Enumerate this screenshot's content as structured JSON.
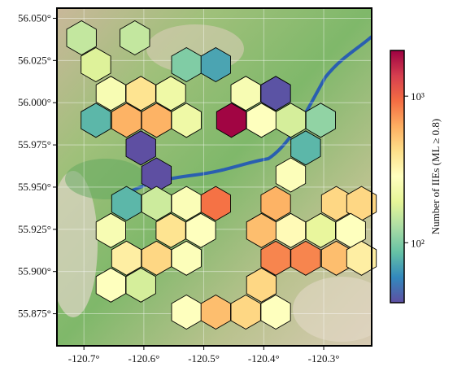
{
  "chart_data": {
    "type": "hexbin",
    "x": [
      -120.704,
      -120.615,
      -120.68,
      -120.529,
      -120.48,
      -120.655,
      -120.605,
      -120.555,
      -120.43,
      -120.38,
      -120.68,
      -120.629,
      -120.579,
      -120.529,
      -120.454,
      -120.404,
      -120.355,
      -120.305,
      -120.605,
      -120.33,
      -120.579,
      -120.355,
      -120.629,
      -120.579,
      -120.529,
      -120.48,
      -120.38,
      -120.279,
      -120.237,
      -120.655,
      -120.555,
      -120.505,
      -120.404,
      -120.355,
      -120.305,
      -120.255,
      -120.629,
      -120.579,
      -120.529,
      -120.38,
      -120.33,
      -120.279,
      -120.237,
      -120.655,
      -120.605,
      -120.404,
      -120.529,
      -120.48,
      -120.43,
      -120.38
    ],
    "y": [
      56.0384,
      56.0384,
      56.0225,
      56.0225,
      56.0225,
      56.0055,
      56.0055,
      56.0055,
      56.0055,
      56.0055,
      55.9896,
      55.9896,
      55.9896,
      55.9896,
      55.9896,
      55.9896,
      55.9896,
      55.9896,
      55.9732,
      55.9732,
      55.9572,
      55.9572,
      55.9403,
      55.9403,
      55.9403,
      55.9403,
      55.9403,
      55.9403,
      55.9403,
      55.9243,
      55.9243,
      55.9243,
      55.9243,
      55.9243,
      55.9243,
      55.9243,
      55.9079,
      55.9079,
      55.9079,
      55.9079,
      55.9079,
      55.9079,
      55.9079,
      55.892,
      55.892,
      55.892,
      55.876,
      55.876,
      55.876,
      55.876
    ],
    "values": [
      150,
      150,
      180,
      100,
      70,
      250,
      400,
      220,
      250,
      40,
      80,
      600,
      600,
      220,
      2000,
      280,
      170,
      110,
      35,
      80,
      35,
      270,
      80,
      160,
      260,
      900,
      600,
      450,
      450,
      250,
      400,
      280,
      550,
      300,
      200,
      280,
      350,
      450,
      270,
      800,
      800,
      550,
      350,
      280,
      170,
      450,
      280,
      550,
      450,
      280
    ],
    "xlim": [
      -120.745,
      -120.22
    ],
    "ylim": [
      55.856,
      56.056
    ],
    "xticks": [
      {
        "value": -120.7,
        "label": "-120.7°"
      },
      {
        "value": -120.6,
        "label": "-120.6°"
      },
      {
        "value": -120.5,
        "label": "-120.5°"
      },
      {
        "value": -120.4,
        "label": "-120.4°"
      },
      {
        "value": -120.3,
        "label": "-120.3°"
      }
    ],
    "yticks": [
      {
        "value": 55.875,
        "label": "55.875°"
      },
      {
        "value": 55.9,
        "label": "55.900°"
      },
      {
        "value": 55.925,
        "label": "55.925°"
      },
      {
        "value": 55.95,
        "label": "55.950°"
      },
      {
        "value": 55.975,
        "label": "55.975°"
      },
      {
        "value": 56.0,
        "label": "56.000°"
      },
      {
        "value": 56.025,
        "label": "56.025°"
      },
      {
        "value": 56.05,
        "label": "56.050°"
      }
    ],
    "colorbar_label": "Number of IIEs (ML ≥ 0.8)",
    "clim": [
      39,
      2050
    ],
    "cticks": [
      {
        "value": 100,
        "label": "10²"
      },
      {
        "value": 1000,
        "label": "10³"
      }
    ],
    "log_scale": true,
    "colormap": [
      "#5e4fa2",
      "#3288bd",
      "#66c2a5",
      "#abdda4",
      "#e6f598",
      "#ffffbf",
      "#fee08b",
      "#fdae61",
      "#f46d43",
      "#d53e4f",
      "#9e0142"
    ]
  }
}
